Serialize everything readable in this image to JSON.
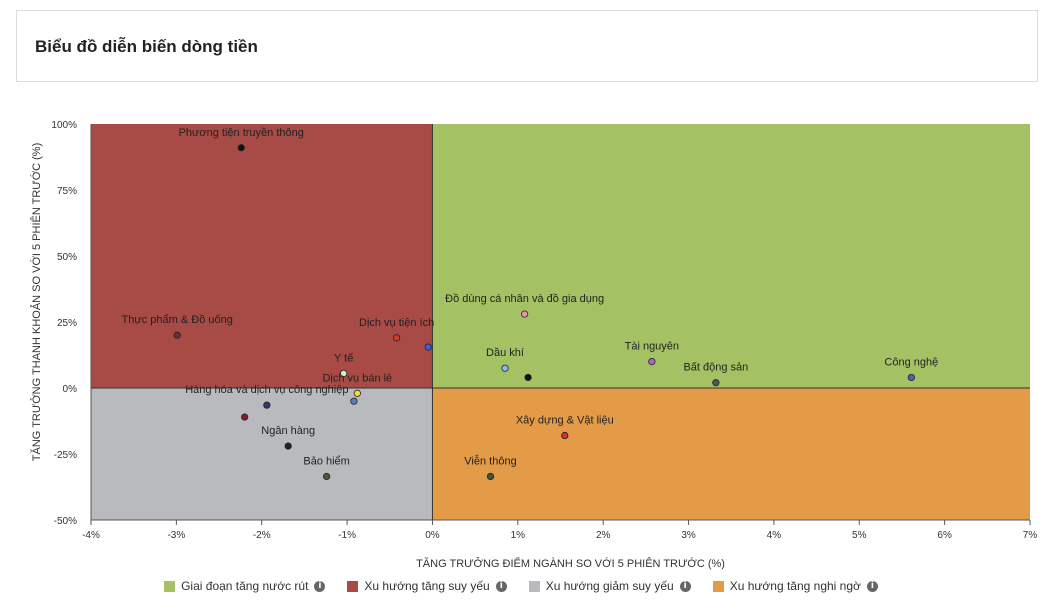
{
  "page": {
    "title": "Biểu đồ diễn biến dòng tiền"
  },
  "legend": [
    {
      "label": "Giai đoạn tăng nước rút",
      "color": "#a4c263"
    },
    {
      "label": "Xu hướng tăng suy yếu",
      "color": "#a84a46"
    },
    {
      "label": "Xu hướng giảm suy yếu",
      "color": "#b9babe"
    },
    {
      "label": "Xu hướng tăng nghi ngờ",
      "color": "#e39b48"
    }
  ],
  "chart_data": {
    "type": "scatter",
    "xlabel": "TĂNG TRƯỞNG ĐIỂM NGÀNH SO VỚI 5 PHIÊN TRƯỚC (%)",
    "ylabel": "TĂNG TRƯỞNG THANH KHOẢN SO VỚI 5 PHIÊN TRƯỚC (%)",
    "xlim": [
      -4,
      7
    ],
    "ylim": [
      -50,
      100
    ],
    "x_ticks": [
      "-4%",
      "-3%",
      "-2%",
      "-1%",
      "0%",
      "1%",
      "2%",
      "3%",
      "4%",
      "5%",
      "6%",
      "7%"
    ],
    "y_ticks": [
      "100%",
      "75%",
      "50%",
      "25%",
      "0%",
      "-25%",
      "-50%"
    ],
    "quadrants": {
      "top_right": "#a4c263",
      "top_left": "#a84a46",
      "bottom_left": "#b9babe",
      "bottom_right": "#e39b48"
    },
    "points": [
      {
        "name": "Phương tiện truyền thông",
        "x": -2.24,
        "y": 91,
        "color": "#111111"
      },
      {
        "name": "Thực phẩm & Đồ uống",
        "x": -2.99,
        "y": 20,
        "color": "#6b3030"
      },
      {
        "name": "Dịch vụ tiện ích",
        "x": -0.42,
        "y": 19,
        "color": "#d43a2a"
      },
      {
        "name": "",
        "x": -0.05,
        "y": 15.5,
        "color": "#3a5fd8"
      },
      {
        "name": "Y tế",
        "x": -1.04,
        "y": 5.5,
        "color": "#d8efc0"
      },
      {
        "name": "Dịch vụ bán lẻ",
        "x": -0.88,
        "y": -2,
        "color": "#f0e030"
      },
      {
        "name": "",
        "x": -0.92,
        "y": -5,
        "color": "#5a7fb0"
      },
      {
        "name": "Hàng hóa và dịch vụ công nghiệp",
        "x": -1.94,
        "y": -6.5,
        "color": "#2a3a6a"
      },
      {
        "name": "",
        "x": -2.2,
        "y": -11,
        "color": "#8a1a2a"
      },
      {
        "name": "Ngân hàng",
        "x": -1.69,
        "y": -22,
        "color": "#222222"
      },
      {
        "name": "Bảo hiểm",
        "x": -1.24,
        "y": -33.5,
        "color": "#4a5a30"
      },
      {
        "name": "Đồ dùng cá nhân và đồ gia dụng",
        "x": 1.08,
        "y": 28,
        "color": "#f090b0"
      },
      {
        "name": "Dầu khí",
        "x": 0.85,
        "y": 7.5,
        "color": "#80c0f0"
      },
      {
        "name": "",
        "x": 1.12,
        "y": 4,
        "color": "#111111"
      },
      {
        "name": "Tài nguyên",
        "x": 2.57,
        "y": 10,
        "color": "#b060d0"
      },
      {
        "name": "Bất động sản",
        "x": 3.32,
        "y": 2,
        "color": "#555555"
      },
      {
        "name": "Công nghệ",
        "x": 5.61,
        "y": 4,
        "color": "#4a60c0"
      },
      {
        "name": "Xây dựng & Vật liệu",
        "x": 1.55,
        "y": -18,
        "color": "#d03040"
      },
      {
        "name": "Viễn thông",
        "x": 0.68,
        "y": -33.5,
        "color": "#3a5a30"
      }
    ]
  }
}
